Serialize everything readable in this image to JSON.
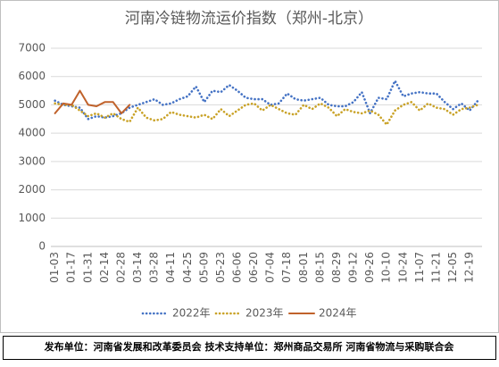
{
  "chart_data": {
    "type": "line",
    "title": "河南冷链物流运价指数（郑州-北京）",
    "footer": "发布单位：河南省发展和改革委员会    技术支持单位：郑州商品交易所    河南省物流与采购联合会",
    "categories": [
      "01-03",
      null,
      "01-17",
      null,
      "01-31",
      null,
      "02-14",
      null,
      "02-28",
      null,
      "03-14",
      null,
      "03-28",
      null,
      "04-11",
      null,
      "04-25",
      null,
      "05-09",
      null,
      "05-23",
      null,
      "06-06",
      null,
      "06-20",
      null,
      "07-04",
      null,
      "07-18",
      null,
      "08-01",
      null,
      "08-15",
      null,
      "08-29",
      null,
      "09-12",
      null,
      "09-26",
      null,
      "10-10",
      null,
      "10-24",
      null,
      "11-07",
      null,
      "11-21",
      null,
      "12-05",
      null,
      "12-19",
      null
    ],
    "series": [
      {
        "name": "2022年",
        "color": "#4472c4",
        "dashed": true,
        "values": [
          5150,
          5000,
          4950,
          4900,
          4500,
          4600,
          4550,
          4600,
          4700,
          4900,
          5000,
          5100,
          5200,
          5000,
          5050,
          5200,
          5300,
          5650,
          5100,
          5500,
          5450,
          5700,
          5500,
          5250,
          5200,
          5200,
          5000,
          5050,
          5400,
          5200,
          5150,
          5200,
          5250,
          5000,
          4950,
          4950,
          5100,
          5450,
          4700,
          5250,
          5200,
          5850,
          5300,
          5400,
          5450,
          5400,
          5400,
          5100,
          4850,
          5050,
          4800,
          5150
        ]
      },
      {
        "name": "2023年",
        "color": "#c9a227",
        "dashed": true,
        "values": [
          5050,
          5000,
          5000,
          4800,
          4600,
          4700,
          4550,
          4700,
          4500,
          4400,
          4900,
          4550,
          4450,
          4500,
          4750,
          4650,
          4600,
          4550,
          4650,
          4500,
          4850,
          4600,
          4800,
          5000,
          5050,
          4800,
          5000,
          4850,
          4700,
          4650,
          5000,
          4850,
          5050,
          4900,
          4600,
          4850,
          4750,
          4700,
          4800,
          4650,
          4300,
          4800,
          5000,
          5100,
          4800,
          5050,
          4900,
          4850,
          4650,
          4850,
          4900,
          5000
        ]
      },
      {
        "name": "2024年",
        "color": "#c0622b",
        "dashed": false,
        "values": [
          4700,
          5050,
          5000,
          5500,
          5000,
          4950,
          5100,
          5100,
          4700,
          5000,
          null,
          null,
          null,
          null,
          null,
          null,
          null,
          null,
          null,
          null,
          null,
          null,
          null,
          null,
          null,
          null,
          null,
          null,
          null,
          null,
          null,
          null,
          null,
          null,
          null,
          null,
          null,
          null,
          null,
          null,
          null,
          null,
          null,
          null,
          null,
          null,
          null,
          null,
          null,
          null,
          null,
          null
        ]
      }
    ],
    "ylim": [
      0,
      7000
    ],
    "yticks": [
      0,
      1000,
      2000,
      3000,
      4000,
      5000,
      6000,
      7000
    ],
    "grid": true,
    "legend": "bottom"
  }
}
